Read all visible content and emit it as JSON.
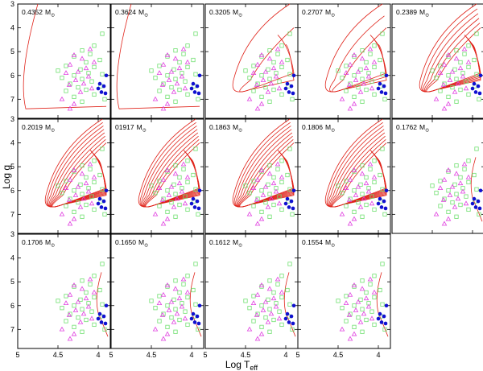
{
  "chart_data": {
    "type": "scatter",
    "layout": "small-multiples grid, 3 rows x 5 columns, 14 panels",
    "xlabel": "Log T",
    "xlabel_subscript": "eff",
    "ylabel": "Log g",
    "xlim": [
      5.0,
      3.85
    ],
    "ylim": [
      3.0,
      7.8
    ],
    "x_ticks": [
      5,
      4.5,
      4
    ],
    "x_tick_labels": [
      "5",
      "4.5",
      "4"
    ],
    "y_ticks": [
      3,
      4,
      5,
      6,
      7
    ],
    "y_tick_labels": [
      "3",
      "4",
      "5",
      "6",
      "7"
    ],
    "mass_unit": "M",
    "mass_unit_subscript": "⊙",
    "panels": [
      {
        "mass": "0.4352",
        "n_tracks": 1
      },
      {
        "mass": "0.3624",
        "n_tracks": 1
      },
      {
        "mass": "0.3205",
        "n_tracks": 2
      },
      {
        "mass": "0.2707",
        "n_tracks": 3
      },
      {
        "mass": "0.2389",
        "n_tracks": 6
      },
      {
        "mass": "0.2019",
        "n_tracks": 8
      },
      {
        "mass": "01917",
        "n_tracks": 8
      },
      {
        "mass": "0.1863",
        "n_tracks": 8
      },
      {
        "mass": "0.1806",
        "n_tracks": 8
      },
      {
        "mass": "0.1762",
        "n_tracks": 1
      },
      {
        "mass": "0.1706",
        "n_tracks": 1
      },
      {
        "mass": "0.1650",
        "n_tracks": 1
      },
      {
        "mass": "0.1612",
        "n_tracks": 1
      },
      {
        "mass": "0.1554",
        "n_tracks": 1
      }
    ],
    "series": [
      {
        "name": "squares",
        "marker": "open-square",
        "color": "#70e070",
        "points": [
          [
            3.95,
            4.25
          ],
          [
            4.05,
            4.75
          ],
          [
            4.2,
            4.95
          ],
          [
            4.1,
            5.1
          ],
          [
            4.3,
            5.2
          ],
          [
            3.98,
            5.35
          ],
          [
            4.15,
            5.45
          ],
          [
            4.4,
            5.6
          ],
          [
            4.05,
            5.65
          ],
          [
            4.22,
            5.75
          ],
          [
            4.5,
            5.8
          ],
          [
            4.12,
            5.9
          ],
          [
            3.95,
            5.95
          ],
          [
            4.3,
            6.0
          ],
          [
            4.45,
            6.1
          ],
          [
            4.2,
            6.15
          ],
          [
            4.08,
            6.25
          ],
          [
            4.35,
            6.35
          ],
          [
            3.97,
            6.45
          ],
          [
            4.25,
            6.5
          ],
          [
            4.15,
            6.6
          ],
          [
            4.4,
            6.65
          ],
          [
            4.05,
            6.8
          ],
          [
            4.3,
            6.9
          ],
          [
            3.92,
            7.0
          ],
          [
            4.2,
            7.1
          ]
        ]
      },
      {
        "name": "triangles",
        "marker": "open-triangle",
        "color": "#e040e0",
        "points": [
          [
            4.1,
            4.9
          ],
          [
            4.3,
            5.15
          ],
          [
            4.2,
            5.3
          ],
          [
            4.05,
            5.45
          ],
          [
            4.35,
            5.55
          ],
          [
            4.15,
            5.7
          ],
          [
            4.25,
            5.85
          ],
          [
            4.4,
            5.9
          ],
          [
            4.12,
            6.05
          ],
          [
            4.28,
            6.2
          ],
          [
            4.18,
            6.35
          ],
          [
            4.36,
            6.4
          ],
          [
            4.08,
            6.55
          ],
          [
            4.22,
            6.7
          ],
          [
            4.45,
            7.0
          ],
          [
            4.3,
            7.2
          ],
          [
            4.35,
            7.4
          ]
        ]
      },
      {
        "name": "filled-circles",
        "marker": "filled-circle",
        "color": "#1010d0",
        "points": [
          [
            3.9,
            6.0
          ],
          [
            3.98,
            6.35
          ],
          [
            3.93,
            6.45
          ],
          [
            4.0,
            6.55
          ],
          [
            3.96,
            6.7
          ],
          [
            3.91,
            6.75
          ]
        ]
      }
    ]
  }
}
